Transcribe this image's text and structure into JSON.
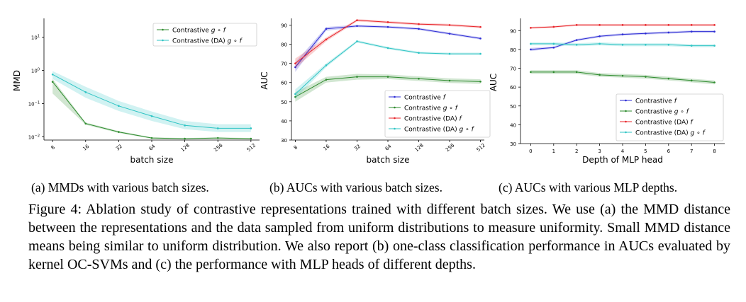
{
  "figure": {
    "subcaptions": [
      "(a) MMDs with various batch sizes.",
      "(b) AUCs with various batch sizes.",
      "(c) AUCs with various MLP depths."
    ],
    "caption": "Figure 4: Ablation study of contrastive representations trained with different batch sizes. We use (a) the MMD distance between the representations and the data sampled from uniform distributions to measure uniformity. Small MMD distance means being similar to uniform distribution. We also report (b) one-class classification performance in AUCs evaluated by kernel OC-SVMs and (c) the performance with MLP heads of different depths."
  },
  "colors": {
    "blue": "#2b2bd4",
    "green": "#2e8b2e",
    "red": "#e8252a",
    "cyan": "#2ec4c4"
  },
  "chart_data": [
    {
      "type": "line",
      "xlabel": "batch size",
      "ylabel": "MMD",
      "yscale": "log",
      "x": [
        "8",
        "16",
        "32",
        "64",
        "128",
        "256",
        "512"
      ],
      "ylim": [
        0.008,
        30
      ],
      "yticks": [
        {
          "value": 0.01,
          "label": "10",
          "exp": "−2"
        },
        {
          "value": 0.1,
          "label": "10",
          "exp": "−1"
        },
        {
          "value": 1,
          "label": "10",
          "exp": "0"
        },
        {
          "value": 10,
          "label": "10",
          "exp": "1"
        }
      ],
      "grid": false,
      "legend": "top-right",
      "series": [
        {
          "name": "Contrastive g ∘ f",
          "color": "green",
          "values": [
            0.45,
            0.025,
            0.014,
            0.0092,
            0.0088,
            0.0092,
            0.0088
          ],
          "band_low": [
            0.2,
            0.023,
            0.013,
            0.0088,
            0.0085,
            0.0088,
            0.0085
          ],
          "band_high": [
            0.55,
            0.027,
            0.015,
            0.0097,
            0.0092,
            0.0097,
            0.0092
          ]
        },
        {
          "name": "Contrastive (DA) g ∘ f",
          "color": "cyan",
          "values": [
            0.75,
            0.22,
            0.085,
            0.042,
            0.022,
            0.018,
            0.018
          ],
          "band_low": [
            0.55,
            0.15,
            0.06,
            0.03,
            0.017,
            0.014,
            0.014
          ],
          "band_high": [
            0.95,
            0.32,
            0.12,
            0.058,
            0.03,
            0.024,
            0.024
          ]
        }
      ]
    },
    {
      "type": "line",
      "xlabel": "batch size",
      "ylabel": "AUC",
      "x": [
        "8",
        "16",
        "32",
        "64",
        "128",
        "256",
        "512"
      ],
      "ylim": [
        30,
        92
      ],
      "yticks": [
        30,
        40,
        50,
        60,
        70,
        80,
        90
      ],
      "grid": false,
      "legend": "bottom-right",
      "series": [
        {
          "name": "Contrastive f",
          "color": "blue",
          "values": [
            68,
            88,
            89.5,
            89,
            88,
            85.5,
            83
          ],
          "band": [
            2.5,
            1.0,
            0.6,
            0.6,
            0.6,
            0.6,
            0.6
          ]
        },
        {
          "name": "Contrastive g ∘ f",
          "color": "green",
          "values": [
            52.5,
            61.5,
            63,
            63,
            62,
            61,
            60.5
          ],
          "band": [
            2.5,
            1.5,
            1.5,
            1.2,
            1.2,
            1.2,
            1.2
          ]
        },
        {
          "name": "Contrastive (DA) f",
          "color": "red",
          "values": [
            70,
            82.5,
            92.5,
            91.5,
            90.5,
            90,
            89
          ],
          "band": [
            2.5,
            1.0,
            0.6,
            0.6,
            0.6,
            0.6,
            0.6
          ]
        },
        {
          "name": "Contrastive (DA) g ∘ f",
          "color": "cyan",
          "values": [
            54,
            69,
            81.5,
            78,
            75.5,
            75,
            75
          ],
          "band": [
            2.5,
            1.0,
            0.6,
            0.6,
            0.6,
            0.6,
            0.6
          ]
        }
      ]
    },
    {
      "type": "line",
      "xlabel": "Depth of MLP head",
      "ylabel": "AUC",
      "x": [
        "0",
        "1",
        "2",
        "3",
        "4",
        "5",
        "6",
        "7",
        "8"
      ],
      "ylim": [
        30,
        95
      ],
      "yticks": [
        30,
        40,
        50,
        60,
        70,
        80,
        90
      ],
      "grid": false,
      "legend": "bottom-right",
      "series": [
        {
          "name": "Contrastive f",
          "color": "blue",
          "values": [
            80,
            81,
            85,
            87,
            88,
            88.5,
            89,
            89.5,
            89.5
          ],
          "band": [
            0.8,
            0.6,
            0.6,
            0.6,
            0.6,
            0.6,
            0.6,
            0.6,
            0.6
          ]
        },
        {
          "name": "Contrastive g ∘ f",
          "color": "green",
          "values": [
            68,
            68,
            68,
            66.5,
            66,
            65.5,
            64.5,
            63.5,
            62.5
          ],
          "band": [
            1.0,
            1.0,
            1.0,
            1.0,
            1.0,
            1.0,
            1.0,
            1.0,
            1.0
          ]
        },
        {
          "name": "Contrastive (DA) f",
          "color": "red",
          "values": [
            91.5,
            92,
            93,
            93,
            93,
            93,
            93,
            93,
            93
          ],
          "band": [
            0.5,
            0.5,
            0.5,
            0.5,
            0.5,
            0.5,
            0.5,
            0.5,
            0.5
          ]
        },
        {
          "name": "Contrastive (DA) g ∘ f",
          "color": "cyan",
          "values": [
            83,
            83,
            82.5,
            83,
            82.5,
            82.5,
            82.5,
            82,
            82
          ],
          "band": [
            0.8,
            0.8,
            0.8,
            0.8,
            0.8,
            0.8,
            0.8,
            0.8,
            0.8
          ]
        }
      ]
    }
  ]
}
